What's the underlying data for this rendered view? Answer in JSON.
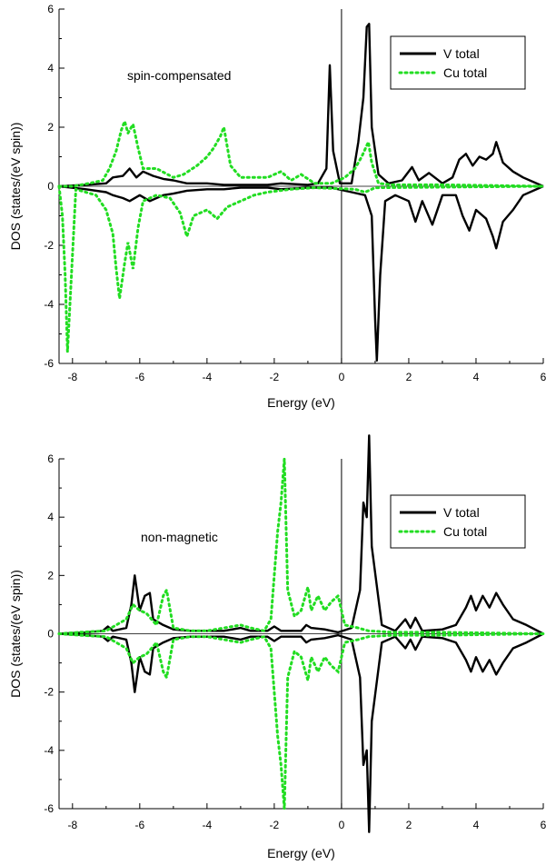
{
  "chart_data": [
    {
      "type": "line",
      "annotation": "spin-compensated",
      "xlabel": "Energy (eV)",
      "ylabel": "DOS (states/(eV spin))",
      "xlim": [
        -8.4,
        6
      ],
      "ylim": [
        -6,
        6
      ],
      "xticks": [
        "-8",
        "-6",
        "-4",
        "-2",
        "0",
        "2",
        "4",
        "6"
      ],
      "yticks": [
        "-6",
        "-4",
        "-2",
        "0",
        "2",
        "4",
        "6"
      ],
      "legend_position": "top-right",
      "grid": false,
      "vline_x": 0,
      "series": [
        {
          "name": "V total",
          "color": "#000000",
          "style": "solid",
          "up": [
            [
              -8.4,
              0
            ],
            [
              -7.6,
              0.05
            ],
            [
              -7.0,
              0.1
            ],
            [
              -6.8,
              0.3
            ],
            [
              -6.5,
              0.35
            ],
            [
              -6.3,
              0.6
            ],
            [
              -6.1,
              0.3
            ],
            [
              -5.9,
              0.5
            ],
            [
              -5.6,
              0.35
            ],
            [
              -5.3,
              0.25
            ],
            [
              -5.0,
              0.2
            ],
            [
              -4.6,
              0.1
            ],
            [
              -4.0,
              0.1
            ],
            [
              -3.5,
              0.05
            ],
            [
              -3.0,
              0.05
            ],
            [
              -2.2,
              0.05
            ],
            [
              -1.8,
              0.1
            ],
            [
              -1.0,
              0.05
            ],
            [
              -0.7,
              0.1
            ],
            [
              -0.45,
              0.6
            ],
            [
              -0.35,
              4.1
            ],
            [
              -0.25,
              1.2
            ],
            [
              -0.05,
              0.1
            ],
            [
              0.3,
              0.1
            ],
            [
              0.5,
              1.5
            ],
            [
              0.65,
              3.0
            ],
            [
              0.75,
              5.4
            ],
            [
              0.82,
              5.5
            ],
            [
              0.9,
              2.0
            ],
            [
              1.1,
              0.4
            ],
            [
              1.4,
              0.1
            ],
            [
              1.8,
              0.2
            ],
            [
              2.1,
              0.65
            ],
            [
              2.3,
              0.2
            ],
            [
              2.6,
              0.45
            ],
            [
              3.0,
              0.1
            ],
            [
              3.3,
              0.3
            ],
            [
              3.5,
              0.9
            ],
            [
              3.7,
              1.1
            ],
            [
              3.9,
              0.7
            ],
            [
              4.1,
              1.0
            ],
            [
              4.3,
              0.9
            ],
            [
              4.5,
              1.1
            ],
            [
              4.6,
              1.5
            ],
            [
              4.8,
              0.8
            ],
            [
              5.1,
              0.5
            ],
            [
              5.4,
              0.3
            ],
            [
              6.0,
              0
            ]
          ],
          "down": [
            [
              -8.4,
              0
            ],
            [
              -7.6,
              -0.1
            ],
            [
              -7.0,
              -0.2
            ],
            [
              -6.8,
              -0.3
            ],
            [
              -6.5,
              -0.4
            ],
            [
              -6.3,
              -0.5
            ],
            [
              -6.0,
              -0.3
            ],
            [
              -5.7,
              -0.5
            ],
            [
              -5.3,
              -0.3
            ],
            [
              -5.0,
              -0.25
            ],
            [
              -4.6,
              -0.15
            ],
            [
              -4.0,
              -0.1
            ],
            [
              -3.5,
              -0.1
            ],
            [
              -3.0,
              -0.05
            ],
            [
              -2.2,
              -0.05
            ],
            [
              -1.8,
              -0.1
            ],
            [
              -1.0,
              -0.05
            ],
            [
              -0.3,
              -0.05
            ],
            [
              0.3,
              -0.2
            ],
            [
              0.7,
              -0.3
            ],
            [
              0.9,
              -1.0
            ],
            [
              1.0,
              -4.5
            ],
            [
              1.05,
              -5.9
            ],
            [
              1.15,
              -3.0
            ],
            [
              1.3,
              -0.5
            ],
            [
              1.6,
              -0.3
            ],
            [
              2.0,
              -0.5
            ],
            [
              2.2,
              -1.2
            ],
            [
              2.4,
              -0.5
            ],
            [
              2.7,
              -1.3
            ],
            [
              3.0,
              -0.3
            ],
            [
              3.4,
              -0.3
            ],
            [
              3.6,
              -1.0
            ],
            [
              3.8,
              -1.5
            ],
            [
              4.0,
              -0.8
            ],
            [
              4.3,
              -1.1
            ],
            [
              4.5,
              -1.7
            ],
            [
              4.6,
              -2.1
            ],
            [
              4.8,
              -1.2
            ],
            [
              5.1,
              -0.8
            ],
            [
              5.4,
              -0.3
            ],
            [
              6.0,
              0
            ]
          ]
        },
        {
          "name": "Cu total",
          "color": "#22dd22",
          "style": "dotted",
          "up": [
            [
              -8.4,
              0
            ],
            [
              -8.0,
              0
            ],
            [
              -7.5,
              0.1
            ],
            [
              -7.1,
              0.2
            ],
            [
              -6.9,
              0.6
            ],
            [
              -6.7,
              1.2
            ],
            [
              -6.55,
              1.9
            ],
            [
              -6.45,
              2.2
            ],
            [
              -6.35,
              1.8
            ],
            [
              -6.2,
              2.1
            ],
            [
              -6.05,
              1.3
            ],
            [
              -5.9,
              0.6
            ],
            [
              -5.5,
              0.6
            ],
            [
              -5.0,
              0.3
            ],
            [
              -4.7,
              0.4
            ],
            [
              -4.3,
              0.7
            ],
            [
              -4.0,
              1.0
            ],
            [
              -3.8,
              1.3
            ],
            [
              -3.6,
              1.7
            ],
            [
              -3.5,
              2.0
            ],
            [
              -3.3,
              0.7
            ],
            [
              -3.0,
              0.3
            ],
            [
              -2.6,
              0.3
            ],
            [
              -2.2,
              0.3
            ],
            [
              -1.8,
              0.5
            ],
            [
              -1.5,
              0.2
            ],
            [
              -1.2,
              0.4
            ],
            [
              -0.8,
              0.1
            ],
            [
              -0.3,
              0.1
            ],
            [
              0.1,
              0.3
            ],
            [
              0.4,
              0.6
            ],
            [
              0.6,
              1.0
            ],
            [
              0.8,
              1.5
            ],
            [
              0.9,
              0.8
            ],
            [
              1.1,
              0.1
            ],
            [
              1.5,
              0.05
            ],
            [
              3.0,
              0.05
            ],
            [
              6.0,
              0
            ]
          ],
          "down": [
            [
              -8.4,
              0
            ],
            [
              -8.3,
              -1.0
            ],
            [
              -8.22,
              -3.0
            ],
            [
              -8.15,
              -5.6
            ],
            [
              -7.9,
              -0.1
            ],
            [
              -7.3,
              -0.3
            ],
            [
              -7.0,
              -0.8
            ],
            [
              -6.8,
              -1.6
            ],
            [
              -6.7,
              -2.8
            ],
            [
              -6.6,
              -3.8
            ],
            [
              -6.45,
              -2.6
            ],
            [
              -6.35,
              -1.9
            ],
            [
              -6.2,
              -2.8
            ],
            [
              -6.05,
              -1.4
            ],
            [
              -5.9,
              -0.5
            ],
            [
              -5.5,
              -0.3
            ],
            [
              -5.1,
              -0.4
            ],
            [
              -4.8,
              -0.9
            ],
            [
              -4.6,
              -1.7
            ],
            [
              -4.4,
              -1.0
            ],
            [
              -4.0,
              -0.8
            ],
            [
              -3.7,
              -1.1
            ],
            [
              -3.4,
              -0.7
            ],
            [
              -3.0,
              -0.5
            ],
            [
              -2.6,
              -0.3
            ],
            [
              -2.2,
              -0.2
            ],
            [
              -1.5,
              -0.1
            ],
            [
              -0.8,
              -0.05
            ],
            [
              0.4,
              -0.1
            ],
            [
              0.7,
              -0.2
            ],
            [
              1.0,
              -0.05
            ],
            [
              6.0,
              0
            ]
          ]
        }
      ]
    },
    {
      "type": "line",
      "annotation": "non-magnetic",
      "xlabel": "Energy (eV)",
      "ylabel": "DOS (states/(eV spin))",
      "xlim": [
        -8.4,
        6
      ],
      "ylim": [
        -6,
        6
      ],
      "xticks": [
        "-8",
        "-6",
        "-4",
        "-2",
        "0",
        "2",
        "4",
        "6"
      ],
      "yticks": [
        "-6",
        "-4",
        "-2",
        "0",
        "2",
        "4",
        "6"
      ],
      "legend_position": "top-right",
      "grid": false,
      "vline_x": 0,
      "symmetric": true,
      "series": [
        {
          "name": "V total",
          "color": "#000000",
          "style": "solid",
          "up": [
            [
              -8.4,
              0
            ],
            [
              -7.6,
              0.05
            ],
            [
              -7.1,
              0.1
            ],
            [
              -6.95,
              0.25
            ],
            [
              -6.8,
              0.1
            ],
            [
              -6.4,
              0.2
            ],
            [
              -6.25,
              1.0
            ],
            [
              -6.15,
              2.0
            ],
            [
              -6.0,
              0.8
            ],
            [
              -5.85,
              1.3
            ],
            [
              -5.7,
              1.4
            ],
            [
              -5.6,
              0.5
            ],
            [
              -5.3,
              0.3
            ],
            [
              -5.0,
              0.15
            ],
            [
              -4.5,
              0.1
            ],
            [
              -3.5,
              0.1
            ],
            [
              -3.0,
              0.2
            ],
            [
              -2.7,
              0.1
            ],
            [
              -2.2,
              0.1
            ],
            [
              -2.0,
              0.25
            ],
            [
              -1.8,
              0.1
            ],
            [
              -1.2,
              0.1
            ],
            [
              -1.05,
              0.3
            ],
            [
              -0.9,
              0.2
            ],
            [
              -0.5,
              0.15
            ],
            [
              -0.1,
              0.05
            ],
            [
              0.3,
              0.2
            ],
            [
              0.55,
              1.5
            ],
            [
              0.65,
              4.5
            ],
            [
              0.75,
              4.0
            ],
            [
              0.82,
              6.8
            ],
            [
              0.9,
              3.0
            ],
            [
              1.2,
              0.3
            ],
            [
              1.6,
              0.1
            ],
            [
              1.9,
              0.5
            ],
            [
              2.05,
              0.2
            ],
            [
              2.2,
              0.55
            ],
            [
              2.4,
              0.1
            ],
            [
              3.0,
              0.15
            ],
            [
              3.4,
              0.3
            ],
            [
              3.7,
              0.9
            ],
            [
              3.85,
              1.3
            ],
            [
              4.0,
              0.8
            ],
            [
              4.2,
              1.3
            ],
            [
              4.4,
              0.9
            ],
            [
              4.6,
              1.4
            ],
            [
              4.8,
              1.0
            ],
            [
              5.1,
              0.5
            ],
            [
              5.5,
              0.3
            ],
            [
              6.0,
              0
            ]
          ]
        },
        {
          "name": "Cu total",
          "color": "#22dd22",
          "style": "dotted",
          "up": [
            [
              -8.4,
              0
            ],
            [
              -7.8,
              0.05
            ],
            [
              -7.0,
              0.1
            ],
            [
              -6.4,
              0.5
            ],
            [
              -6.2,
              1.0
            ],
            [
              -6.0,
              0.8
            ],
            [
              -5.8,
              0.7
            ],
            [
              -5.5,
              0.3
            ],
            [
              -5.3,
              1.3
            ],
            [
              -5.2,
              1.5
            ],
            [
              -5.0,
              0.2
            ],
            [
              -4.5,
              0.1
            ],
            [
              -4.0,
              0.1
            ],
            [
              -3.5,
              0.2
            ],
            [
              -3.0,
              0.3
            ],
            [
              -2.7,
              0.2
            ],
            [
              -2.3,
              0.1
            ],
            [
              -2.1,
              0.5
            ],
            [
              -2.0,
              2.0
            ],
            [
              -1.9,
              3.5
            ],
            [
              -1.8,
              4.5
            ],
            [
              -1.7,
              6.0
            ],
            [
              -1.6,
              1.5
            ],
            [
              -1.4,
              0.6
            ],
            [
              -1.2,
              0.8
            ],
            [
              -1.0,
              1.6
            ],
            [
              -0.9,
              0.8
            ],
            [
              -0.7,
              1.3
            ],
            [
              -0.5,
              0.8
            ],
            [
              -0.3,
              1.1
            ],
            [
              -0.1,
              1.3
            ],
            [
              0.1,
              0.3
            ],
            [
              0.5,
              0.2
            ],
            [
              0.8,
              0.1
            ],
            [
              1.5,
              0.05
            ],
            [
              3.0,
              0.05
            ],
            [
              6.0,
              0
            ]
          ]
        }
      ]
    }
  ]
}
